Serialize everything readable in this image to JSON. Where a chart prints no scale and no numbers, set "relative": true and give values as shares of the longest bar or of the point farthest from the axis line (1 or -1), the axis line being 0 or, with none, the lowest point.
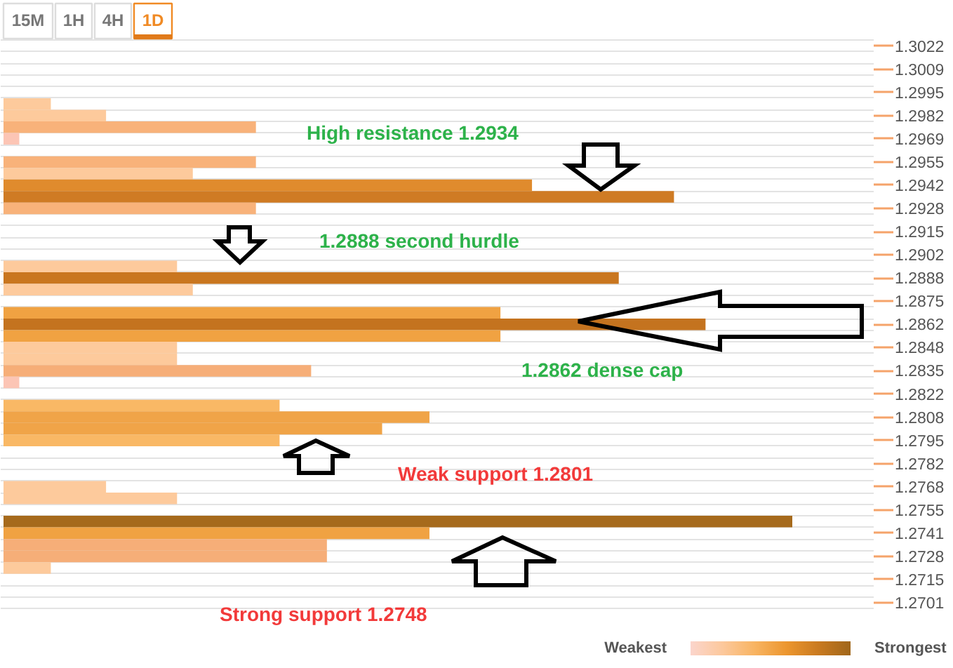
{
  "chart_data": {
    "type": "bar",
    "orientation": "horizontal",
    "relative": true,
    "grid": "y",
    "categories": [
      "1.3022",
      null,
      "1.3009",
      null,
      "1.2995",
      null,
      "1.2982",
      null,
      "1.2969",
      null,
      "1.2955",
      null,
      "1.2942",
      null,
      "1.2928",
      null,
      "1.2915",
      null,
      "1.2902",
      null,
      "1.2888",
      null,
      "1.2875",
      null,
      "1.2862",
      null,
      "1.2848",
      null,
      "1.2835",
      null,
      "1.2822",
      null,
      "1.2808",
      null,
      "1.2795",
      null,
      "1.2782",
      null,
      "1.2768",
      null,
      "1.2755",
      null,
      "1.2741",
      null,
      "1.2728",
      null,
      "1.2715",
      null,
      "1.2701"
    ],
    "values": [
      null,
      null,
      null,
      null,
      null,
      0.06,
      0.13,
      0.32,
      0.02,
      null,
      0.32,
      0.24,
      0.67,
      0.85,
      0.32,
      null,
      null,
      null,
      null,
      0.22,
      0.78,
      0.24,
      null,
      0.63,
      0.89,
      0.63,
      0.22,
      0.22,
      0.39,
      0.02,
      null,
      0.35,
      0.54,
      0.48,
      0.35,
      null,
      null,
      null,
      0.13,
      0.22,
      null,
      1,
      0.54,
      0.41,
      0.41,
      0.06,
      null,
      null,
      null
    ],
    "colors": [
      null,
      null,
      null,
      null,
      null,
      "#fdca9c",
      "#fdca9c",
      "#f8b27a",
      "#fcc5b5",
      null,
      "#f8b27a",
      "#fdca9c",
      "#e08b2d",
      "#cf7b24",
      "#f8b27a",
      null,
      null,
      null,
      null,
      "#fdca9c",
      "#c9761f",
      "#fdca9c",
      null,
      "#f0a242",
      "#c4731f",
      "#f0a242",
      "#fdca9c",
      "#fdca9c",
      "#f6ae78",
      "#fcc5b5",
      null,
      "#f9b865",
      "#f0a448",
      "#f0a448",
      "#f9b865",
      null,
      null,
      null,
      "#fdca9c",
      "#fdca9c",
      null,
      "#a66a1c",
      "#f0a242",
      "#f6ae78",
      "#f6ae78",
      "#fdca9c",
      null,
      null,
      null
    ],
    "annotations": [
      "15M",
      "1H",
      "4H",
      "1D",
      "High resistance 1.2934",
      "1.2888 second hurdle",
      "1.2862 dense cap",
      "Weak support 1.2801",
      "Strong support 1.2748",
      "Weakest",
      "Strongest"
    ]
  }
}
